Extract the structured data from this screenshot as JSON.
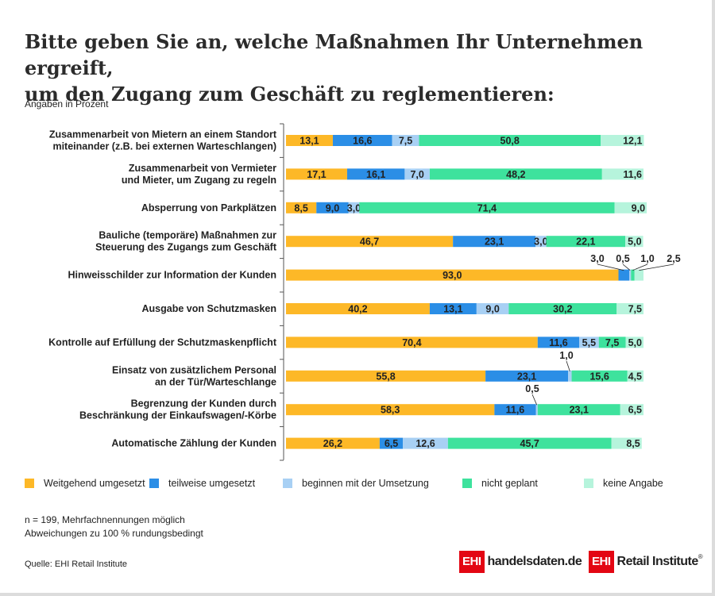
{
  "title": {
    "line1": "Bitte geben Sie an, welche Maßnahmen Ihr Unternehmen  ergreift,",
    "line2": "um den Zugang zum Geschäft zu reglementieren:"
  },
  "unit_note": "Angaben in Prozent",
  "chart_data": {
    "type": "bar",
    "orientation": "horizontal",
    "stacked": true,
    "xlim": [
      0,
      100
    ],
    "categories": [
      [
        "Zusammenarbeit von Mietern an einem Standort",
        "miteinander (z.B. bei externen Warteschlangen)"
      ],
      [
        "Zusammenarbeit von Vermieter",
        "und Mieter, um Zugang zu regeln"
      ],
      [
        "Absperrung von Parkplätzen"
      ],
      [
        "Bauliche (temporäre) Maßnahmen zur",
        "Steuerung des Zugangs zum Geschäft"
      ],
      [
        "Hinweisschilder zur Information der Kunden"
      ],
      [
        "Ausgabe von Schutzmasken"
      ],
      [
        "Kontrolle auf Erfüllung der Schutzmaskenpflicht"
      ],
      [
        "Einsatz von zusätzlichem Personal",
        "an der Tür/Warteschlange"
      ],
      [
        "Begrenzung der Kunden durch",
        "Beschränkung der Einkaufswagen/-Körbe"
      ],
      [
        "Automatische Zählung der Kunden"
      ]
    ],
    "series": [
      {
        "name": "Weitgehend umgesetzt",
        "color": "#fdb827",
        "values": [
          13.1,
          17.1,
          8.5,
          46.7,
          93.0,
          40.2,
          70.4,
          55.8,
          58.3,
          26.2
        ],
        "labels": [
          "13,1",
          "17,1",
          "8,5",
          "46,7",
          "93,0",
          "40,2",
          "70,4",
          "55,8",
          "58,3",
          "26,2"
        ]
      },
      {
        "name": "teilweise umgesetzt",
        "color": "#2b8ee6",
        "values": [
          16.6,
          16.1,
          9.0,
          23.1,
          3.0,
          13.1,
          11.6,
          23.1,
          11.6,
          6.5
        ],
        "labels": [
          "16,6",
          "16,1",
          "9,0",
          "23,1",
          "3,0",
          "13,1",
          "11,6",
          "23,1",
          "11,6",
          "6,5"
        ]
      },
      {
        "name": "beginnen mit der Umsetzung",
        "color": "#a8d0f4",
        "values": [
          7.5,
          7.0,
          3.0,
          3.0,
          0.5,
          9.0,
          5.5,
          1.0,
          0.5,
          12.6
        ],
        "labels": [
          "7,5",
          "7,0",
          "3,0",
          "3,0",
          "0,5",
          "9,0",
          "5,5",
          "1,0",
          "0,5",
          "12,6"
        ]
      },
      {
        "name": "nicht geplant",
        "color": "#3ee29d",
        "values": [
          50.8,
          48.2,
          71.4,
          22.1,
          1.0,
          30.2,
          7.5,
          15.6,
          23.1,
          45.7
        ],
        "labels": [
          "50,8",
          "48,2",
          "71,4",
          "22,1",
          "1,0",
          "30,2",
          "7,5",
          "15,6",
          "23,1",
          "45,7"
        ]
      },
      {
        "name": "keine Angabe",
        "color": "#b6f4dc",
        "values": [
          12.1,
          11.6,
          9.0,
          5.0,
          2.5,
          7.5,
          5.0,
          4.5,
          6.5,
          8.5
        ],
        "labels": [
          "12,1",
          "11,6",
          "9,0",
          "5,0",
          "2,5",
          "7,5",
          "5,0",
          "4,5",
          "6,5",
          "8,5"
        ]
      }
    ]
  },
  "notes": {
    "line1": "n = 199, Mehrfachnennungen möglich",
    "line2": "Abweichungen zu 100 % rundungsbedingt"
  },
  "source": "Quelle: EHI Retail Institute",
  "logos": {
    "logo1_box": "EHI",
    "logo1_text": "handelsdaten.de",
    "logo2_box": "EHI",
    "logo2_text": "Retail Institute",
    "logo2_mark": "®"
  }
}
